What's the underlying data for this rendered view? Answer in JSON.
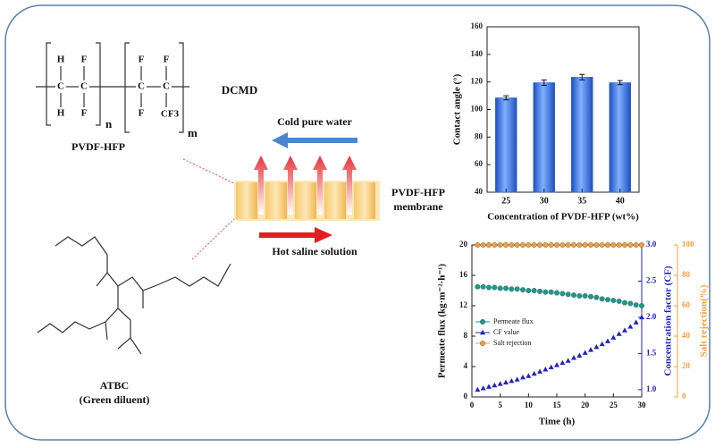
{
  "diagram": {
    "structure": {
      "atoms": [
        "H",
        "F",
        "F",
        "F",
        "C",
        "C",
        "C",
        "C",
        "H",
        "F",
        "F",
        "CF3"
      ],
      "repeat": [
        "n",
        "m"
      ],
      "name": "PVDF-HFP"
    },
    "process": "DCMD",
    "cold_stream": "Cold pure water",
    "hot_stream": "Hot saline solution",
    "membrane": [
      "PVDF-HFP",
      "membrane"
    ],
    "diluent": [
      "ATBC",
      "(Green diluent)"
    ]
  },
  "chart_data": [
    {
      "type": "bar",
      "xlabel": "Concentration of PVDF-HFP (wt%)",
      "ylabel": "Contact angle (°)",
      "categories": [
        "25",
        "30",
        "35",
        "40"
      ],
      "values": [
        108.5,
        119.5,
        123.5,
        119.5
      ],
      "errors": [
        1.5,
        2,
        2,
        1.5
      ],
      "color": "#3a6fd8",
      "ylim": [
        40,
        160
      ],
      "yticks": [
        40,
        60,
        80,
        100,
        120,
        140,
        160
      ]
    },
    {
      "type": "scatter",
      "xlabel": "Time (h)",
      "ylabel": "Permeate flux (kg·m⁻²·h⁻¹)",
      "y2label": "Concentration factor (CF)",
      "y3label": "Salt rejection(%)",
      "x": [
        1,
        2,
        3,
        4,
        5,
        6,
        7,
        8,
        9,
        10,
        11,
        12,
        13,
        14,
        15,
        16,
        17,
        18,
        19,
        20,
        21,
        22,
        23,
        24,
        25,
        26,
        27,
        28,
        29,
        30
      ],
      "xlim": [
        0,
        30
      ],
      "xticks": [
        0,
        5,
        10,
        15,
        20,
        25,
        30
      ],
      "ylim": [
        0,
        20
      ],
      "yticks": [
        0,
        4,
        8,
        12,
        16,
        20
      ],
      "y2lim": [
        0.9,
        3.0
      ],
      "y2ticks": [
        {
          "value": 1,
          "label": "1.0"
        },
        1.5,
        {
          "value": 2,
          "label": "2.0"
        },
        2.5,
        {
          "value": 3,
          "label": "3.0"
        }
      ],
      "y3lim": [
        0,
        100
      ],
      "y3ticks": [
        0,
        20,
        40,
        60,
        80,
        100
      ],
      "series": [
        {
          "name": "Permeate flux",
          "color": "#1a9a8a",
          "marker": "circle",
          "values": [
            14.5,
            14.5,
            14.4,
            14.4,
            14.3,
            14.3,
            14.2,
            14.2,
            14.1,
            14.0,
            14.0,
            13.9,
            13.8,
            13.8,
            13.7,
            13.6,
            13.5,
            13.4,
            13.3,
            13.3,
            13.2,
            13.1,
            12.9,
            12.8,
            12.7,
            12.6,
            12.4,
            12.3,
            12.1,
            12.0
          ]
        },
        {
          "name": "CF value",
          "color": "#2323c0",
          "marker": "triangle",
          "axis": "y2",
          "values": [
            1.0,
            1.02,
            1.04,
            1.06,
            1.08,
            1.1,
            1.12,
            1.14,
            1.17,
            1.19,
            1.22,
            1.25,
            1.28,
            1.31,
            1.34,
            1.37,
            1.4,
            1.44,
            1.47,
            1.51,
            1.55,
            1.59,
            1.63,
            1.67,
            1.72,
            1.77,
            1.82,
            1.87,
            1.93,
            2.0
          ]
        },
        {
          "name": "Salt rejection",
          "color": "#f0a040",
          "marker": "circle",
          "axis": "y3",
          "values": [
            100,
            100,
            100,
            100,
            100,
            100,
            100,
            100,
            100,
            100,
            100,
            100,
            100,
            100,
            100,
            100,
            100,
            100,
            100,
            100,
            100,
            100,
            100,
            100,
            100,
            100,
            100,
            100,
            100,
            100
          ]
        }
      ]
    }
  ]
}
